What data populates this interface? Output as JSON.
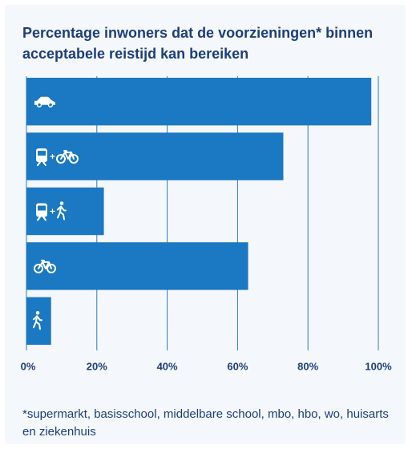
{
  "chart_data": {
    "type": "bar",
    "orientation": "horizontal",
    "title": "Percentage inwoners dat de voorzieningen* binnen acceptabele reistijd kan bereiken",
    "categories": [
      null,
      null,
      null,
      null,
      null
    ],
    "values": [
      98,
      73,
      22,
      63,
      7
    ],
    "color": "#1b78c2",
    "xlim": [
      0,
      100
    ],
    "xticks": [
      {
        "value": 0,
        "label": "0%"
      },
      {
        "value": 20,
        "label": "20%"
      },
      {
        "value": 40,
        "label": "40%"
      },
      {
        "value": 60,
        "label": "60%"
      },
      {
        "value": 80,
        "label": "80%"
      },
      {
        "value": 100,
        "label": "100%"
      }
    ],
    "grid": true,
    "footnote": "*supermarkt, basisschool, middelbare school, mbo, hbo, wo, huisarts en ziekenhuis"
  }
}
